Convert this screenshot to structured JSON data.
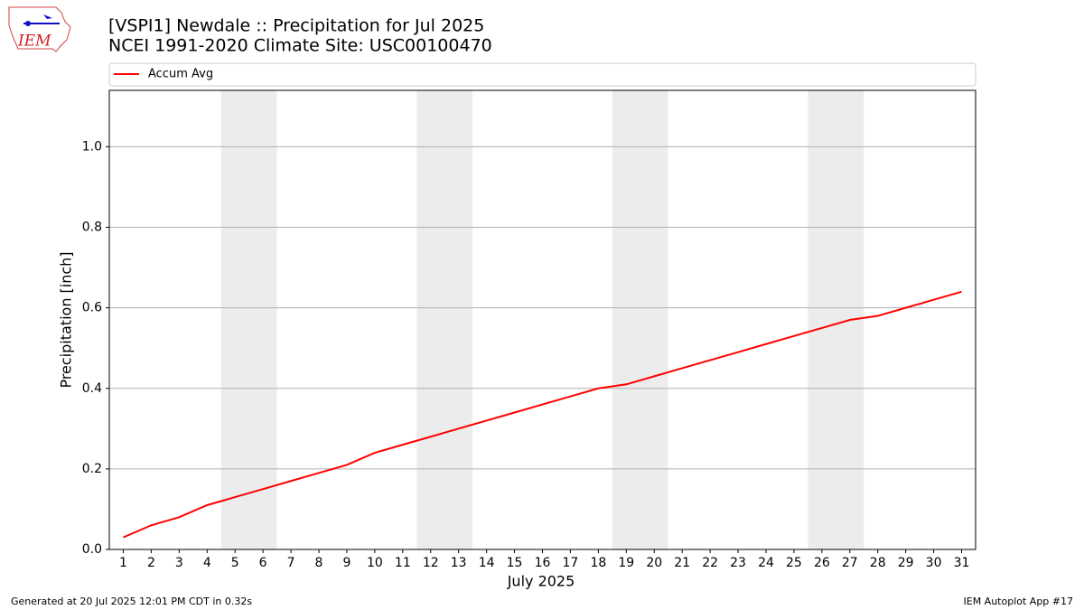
{
  "chart_data": {
    "type": "line",
    "title": "[VSPI1] Newdale :: Precipitation for Jul 2025",
    "subtitle": "NCEI 1991-2020 Climate Site: USC00100470",
    "xlabel": "July 2025",
    "ylabel": "Precipitation [inch]",
    "x": [
      1,
      2,
      3,
      4,
      5,
      6,
      7,
      8,
      9,
      10,
      11,
      12,
      13,
      14,
      15,
      16,
      17,
      18,
      19,
      20,
      21,
      22,
      23,
      24,
      25,
      26,
      27,
      28,
      29,
      30,
      31
    ],
    "series": [
      {
        "name": "Accum Avg",
        "color": "#ff0000",
        "values": [
          0.03,
          0.06,
          0.08,
          0.11,
          0.13,
          0.15,
          0.17,
          0.19,
          0.21,
          0.24,
          0.26,
          0.28,
          0.3,
          0.32,
          0.34,
          0.36,
          0.38,
          0.4,
          0.41,
          0.43,
          0.45,
          0.47,
          0.49,
          0.51,
          0.53,
          0.55,
          0.57,
          0.58,
          0.6,
          0.62,
          0.64
        ]
      }
    ],
    "weekends": [
      5,
      6,
      12,
      13,
      19,
      20,
      26,
      27
    ],
    "xlim": [
      0.5,
      31.5
    ],
    "xticks": [
      1,
      2,
      3,
      4,
      5,
      6,
      7,
      8,
      9,
      10,
      11,
      12,
      13,
      14,
      15,
      16,
      17,
      18,
      19,
      20,
      21,
      22,
      23,
      24,
      25,
      26,
      27,
      28,
      29,
      30,
      31
    ],
    "ylim": [
      0,
      1.14
    ],
    "yticks": [
      {
        "value": 0,
        "label": "0.0"
      },
      {
        "value": 0.2,
        "label": "0.2"
      },
      {
        "value": 0.4,
        "label": "0.4"
      },
      {
        "value": 0.6,
        "label": "0.6"
      },
      {
        "value": 0.8,
        "label": "0.8"
      },
      {
        "value": 1,
        "label": "1.0"
      }
    ],
    "grid": true,
    "legend": "top"
  },
  "logo": "IEM",
  "footer": {
    "left": "Generated at 20 Jul 2025 12:01 PM CDT in 0.32s",
    "right": "IEM Autoplot App #17"
  }
}
